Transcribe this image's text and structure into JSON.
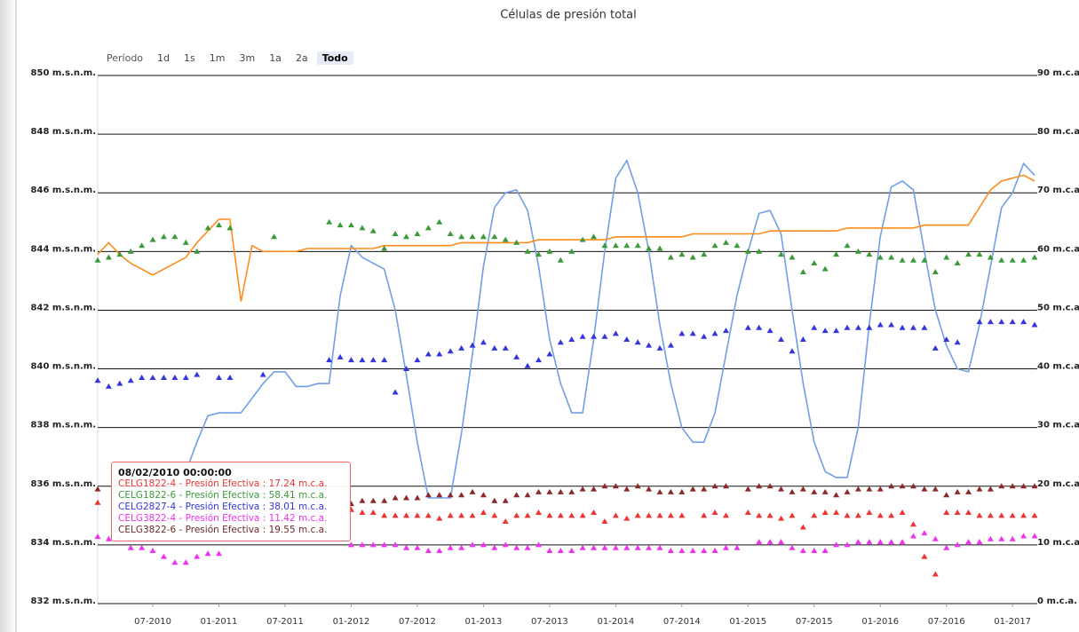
{
  "chart_data": {
    "type": "line",
    "title": "Células de presión total",
    "range_selector": {
      "label": "Período",
      "buttons": [
        "1d",
        "1s",
        "1m",
        "3m",
        "1a",
        "2a",
        "Todo"
      ],
      "selected": 6
    },
    "x": [
      "02-2010",
      "03-2010",
      "04-2010",
      "05-2010",
      "06-2010",
      "07-2010",
      "08-2010",
      "09-2010",
      "10-2010",
      "11-2010",
      "12-2010",
      "01-2011",
      "02-2011",
      "03-2011",
      "04-2011",
      "05-2011",
      "06-2011",
      "07-2011",
      "08-2011",
      "09-2011",
      "10-2011",
      "11-2011",
      "12-2011",
      "01-2012",
      "02-2012",
      "03-2012",
      "04-2012",
      "05-2012",
      "06-2012",
      "07-2012",
      "08-2012",
      "09-2012",
      "10-2012",
      "11-2012",
      "12-2012",
      "01-2013",
      "02-2013",
      "03-2013",
      "04-2013",
      "05-2013",
      "06-2013",
      "07-2013",
      "08-2013",
      "09-2013",
      "10-2013",
      "11-2013",
      "12-2013",
      "01-2014",
      "02-2014",
      "03-2014",
      "04-2014",
      "05-2014",
      "06-2014",
      "07-2014",
      "08-2014",
      "09-2014",
      "10-2014",
      "11-2014",
      "12-2014",
      "01-2015",
      "02-2015",
      "03-2015",
      "04-2015",
      "05-2015",
      "06-2015",
      "07-2015",
      "08-2015",
      "09-2015",
      "10-2015",
      "11-2015",
      "12-2015",
      "01-2016",
      "02-2016",
      "03-2016",
      "04-2016",
      "05-2016",
      "06-2016",
      "07-2016",
      "08-2016",
      "09-2016",
      "10-2016",
      "11-2016",
      "12-2016",
      "01-2017",
      "02-2017",
      "03-2017"
    ],
    "xticks": [
      "07-2010",
      "01-2011",
      "07-2011",
      "01-2012",
      "07-2012",
      "01-2013",
      "07-2013",
      "01-2014",
      "07-2014",
      "01-2015",
      "07-2015",
      "01-2016",
      "07-2016",
      "01-2017"
    ],
    "ylim": [
      832,
      850
    ],
    "yticks": [
      {
        "value": 832,
        "label": "832 m.s.n.m."
      },
      {
        "value": 834,
        "label": "834 m.s.n.m."
      },
      {
        "value": 836,
        "label": "836 m.s.n.m."
      },
      {
        "value": 838,
        "label": "838 m.s.n.m."
      },
      {
        "value": 840,
        "label": "840 m.s.n.m."
      },
      {
        "value": 842,
        "label": "842 m.s.n.m."
      },
      {
        "value": 844,
        "label": "844 m.s.n.m."
      },
      {
        "value": 846,
        "label": "846 m.s.n.m."
      },
      {
        "value": 848,
        "label": "848 m.s.n.m."
      },
      {
        "value": 850,
        "label": "850 m.s.n.m."
      }
    ],
    "y2lim": [
      0,
      90
    ],
    "y2ticks": [
      {
        "value": 0,
        "label": "0 m.c.a."
      },
      {
        "value": 10,
        "label": "10 m.c.a."
      },
      {
        "value": 20,
        "label": "20 m.c.a."
      },
      {
        "value": 30,
        "label": "30 m.c.a."
      },
      {
        "value": 40,
        "label": "40 m.c.a."
      },
      {
        "value": 50,
        "label": "50 m.c.a."
      },
      {
        "value": 60,
        "label": "60 m.c.a."
      },
      {
        "value": 70,
        "label": "70 m.c.a."
      },
      {
        "value": 80,
        "label": "80 m.c.a."
      },
      {
        "value": 90,
        "label": "90 m.c.a."
      }
    ],
    "grid": true,
    "series": [
      {
        "type": "line",
        "color": "#6f9fe6",
        "values": [
          null,
          null,
          null,
          null,
          null,
          null,
          null,
          835.0,
          836.5,
          837.5,
          838.4,
          838.5,
          838.5,
          838.5,
          839.0,
          839.5,
          839.9,
          839.9,
          839.4,
          839.4,
          839.5,
          839.5,
          842.5,
          844.2,
          843.8,
          843.6,
          843.4,
          842.0,
          839.8,
          837.5,
          835.6,
          835.6,
          835.6,
          837.8,
          840.5,
          843.5,
          845.5,
          846.0,
          846.1,
          845.4,
          843.5,
          841.0,
          839.5,
          838.5,
          838.5,
          841.0,
          844.0,
          846.5,
          847.1,
          846.0,
          844.0,
          841.5,
          839.5,
          838.0,
          837.5,
          837.5,
          838.5,
          840.5,
          842.5,
          844.0,
          845.3,
          845.4,
          844.6,
          842.0,
          839.5,
          837.5,
          836.5,
          836.3,
          836.3,
          838.0,
          841.5,
          844.5,
          846.2,
          846.4,
          846.1,
          844.0,
          842.0,
          840.8,
          840.0,
          839.9,
          841.5,
          843.5,
          845.5,
          846.0,
          847.0,
          846.6
        ]
      },
      {
        "type": "line",
        "color": "#ff8c1a",
        "values": [
          843.9,
          844.3,
          843.9,
          843.6,
          843.4,
          843.2,
          843.4,
          843.6,
          843.8,
          844.3,
          844.7,
          845.1,
          845.1,
          842.3,
          844.2,
          844.0,
          844.0,
          844.0,
          844.0,
          844.1,
          844.1,
          844.1,
          844.1,
          844.1,
          844.1,
          844.1,
          844.2,
          844.2,
          844.2,
          844.2,
          844.2,
          844.2,
          844.2,
          844.3,
          844.3,
          844.3,
          844.3,
          844.3,
          844.3,
          844.3,
          844.4,
          844.4,
          844.4,
          844.4,
          844.4,
          844.4,
          844.4,
          844.5,
          844.5,
          844.5,
          844.5,
          844.5,
          844.5,
          844.5,
          844.6,
          844.6,
          844.6,
          844.6,
          844.6,
          844.6,
          844.6,
          844.7,
          844.7,
          844.7,
          844.7,
          844.7,
          844.7,
          844.7,
          844.8,
          844.8,
          844.8,
          844.8,
          844.8,
          844.8,
          844.8,
          844.9,
          844.9,
          844.9,
          844.9,
          844.9,
          845.5,
          846.1,
          846.4,
          846.5,
          846.6,
          846.4
        ]
      },
      {
        "type": "scatter",
        "axis": "y2",
        "color": "#3a9a3a",
        "values": [
          58.5,
          59,
          59.5,
          60,
          61,
          62,
          62.5,
          62.5,
          61.5,
          60,
          64,
          64.5,
          64,
          null,
          null,
          null,
          62.5,
          null,
          null,
          null,
          null,
          65,
          64.5,
          64.5,
          64,
          63.5,
          60.5,
          63,
          62.5,
          63,
          64,
          65,
          63,
          62.5,
          62.5,
          62.5,
          62.5,
          62,
          61.5,
          60,
          59.5,
          60,
          58.5,
          60,
          62,
          62.5,
          61,
          61,
          61,
          61,
          60.5,
          60.5,
          59,
          59.5,
          59,
          59.5,
          61,
          61.5,
          61,
          60,
          60,
          null,
          59.5,
          59,
          56.5,
          58,
          57,
          59.5,
          61,
          60,
          59.5,
          59,
          59,
          58.5,
          58.5,
          58.5,
          56.5,
          59,
          58,
          59.5,
          59.5,
          59,
          58.5,
          58.5,
          58.5,
          59
        ]
      },
      {
        "type": "scatter",
        "axis": "y2",
        "color": "#3535dd",
        "values": [
          38,
          37,
          37.5,
          38,
          38.5,
          38.5,
          38.5,
          38.5,
          38.5,
          39,
          null,
          38.5,
          38.5,
          null,
          null,
          39,
          null,
          null,
          null,
          null,
          null,
          41.5,
          42,
          41.5,
          41.5,
          41.5,
          41.5,
          36,
          40,
          41.5,
          42.5,
          42.5,
          43,
          43.5,
          44,
          44.5,
          43.5,
          43.5,
          42,
          40.5,
          41.5,
          42.5,
          44.5,
          45,
          45.5,
          45.5,
          45.5,
          46,
          45,
          44.5,
          44,
          43.5,
          44,
          46,
          46,
          45.5,
          46,
          46.5,
          null,
          47,
          47,
          46.5,
          45,
          43,
          45,
          47,
          46.5,
          46.5,
          47,
          47,
          47,
          47.5,
          47.5,
          47,
          47,
          47,
          43.5,
          45,
          44.5,
          null,
          48,
          48,
          48,
          48,
          48,
          47.5
        ]
      },
      {
        "type": "scatter",
        "axis": "y2",
        "color": "#8b2a2a",
        "values": [
          19.5,
          null,
          null,
          null,
          null,
          null,
          null,
          null,
          null,
          null,
          null,
          null,
          null,
          null,
          null,
          null,
          null,
          null,
          null,
          null,
          null,
          null,
          null,
          17,
          17.5,
          17.5,
          17.5,
          18,
          18,
          18,
          18.5,
          18.5,
          18.5,
          18.5,
          19,
          18.5,
          17.5,
          17.5,
          18.5,
          18.5,
          19,
          19,
          19,
          19,
          19.5,
          19.5,
          20,
          20,
          19.5,
          20,
          19.5,
          19,
          19,
          19,
          19.5,
          19.5,
          20,
          20,
          null,
          19.5,
          20,
          20,
          19.5,
          19,
          19.5,
          19,
          19,
          18.5,
          19,
          19.5,
          19.5,
          19.5,
          20,
          20,
          20,
          19.5,
          19.5,
          18.5,
          19,
          19,
          19.5,
          19.5,
          20,
          20,
          20,
          20
        ]
      },
      {
        "type": "scatter",
        "axis": "y2",
        "color": "#ee3333",
        "values": [
          17.2,
          null,
          null,
          null,
          null,
          null,
          null,
          null,
          null,
          null,
          null,
          null,
          null,
          null,
          null,
          null,
          null,
          null,
          null,
          null,
          null,
          null,
          null,
          16,
          15.5,
          15.5,
          15,
          15,
          15,
          15,
          15,
          14.5,
          15,
          15,
          15,
          15.5,
          15,
          14,
          15,
          15,
          15.5,
          15,
          15,
          15,
          15,
          15.5,
          14,
          15,
          14.5,
          15,
          15,
          15,
          15,
          15,
          null,
          15,
          15.5,
          15,
          null,
          15.5,
          15,
          15,
          14.5,
          15,
          13,
          15,
          15.5,
          15.5,
          15,
          15,
          15.5,
          15,
          15,
          15.5,
          13.5,
          8,
          5,
          15.5,
          15.5,
          15.5,
          15,
          15,
          15,
          15,
          15,
          15
        ]
      },
      {
        "type": "scatter",
        "axis": "y2",
        "color": "#ee33ee",
        "values": [
          11.4,
          11,
          11,
          9.5,
          9.5,
          9,
          8,
          7,
          7,
          8,
          8.5,
          8.5,
          null,
          null,
          null,
          null,
          null,
          null,
          null,
          null,
          null,
          null,
          null,
          10,
          10,
          10,
          10,
          10,
          9.5,
          9.5,
          9,
          9,
          9.5,
          9.5,
          10,
          10,
          9.5,
          10,
          9.5,
          9.5,
          10,
          9,
          9,
          9,
          9.5,
          9.5,
          9.5,
          9.5,
          9.5,
          9.5,
          9.5,
          9.5,
          9,
          9,
          9,
          9,
          9,
          9.5,
          9.5,
          null,
          10.5,
          10.5,
          10.5,
          9.5,
          9,
          9,
          9,
          10,
          10,
          10.5,
          10.5,
          10.5,
          10.5,
          10.5,
          11.5,
          12,
          11,
          9.5,
          10,
          10.5,
          10.5,
          11,
          11,
          11,
          11.5,
          11.5
        ]
      }
    ],
    "tooltip": {
      "date": "08/02/2010 00:00:00",
      "lines": [
        {
          "text": "CELG1822-4 - Presión Efectiva : 17.24 m.c.a.",
          "color": "#ee3333"
        },
        {
          "text": "CELG1822-6 - Presión Efectiva : 58.41 m.c.a.",
          "color": "#3a9a3a"
        },
        {
          "text": "CELG2827-4 - Presión Efectiva : 38.01 m.c.a.",
          "color": "#3535dd"
        },
        {
          "text": "CELG3822-4 - Presión Efectiva : 11.42 m.c.a.",
          "color": "#ee33ee"
        },
        {
          "text": "CELG3822-6 - Presión Efectiva : 19.55 m.c.a.",
          "color": "#6b2a2a"
        }
      ]
    }
  }
}
